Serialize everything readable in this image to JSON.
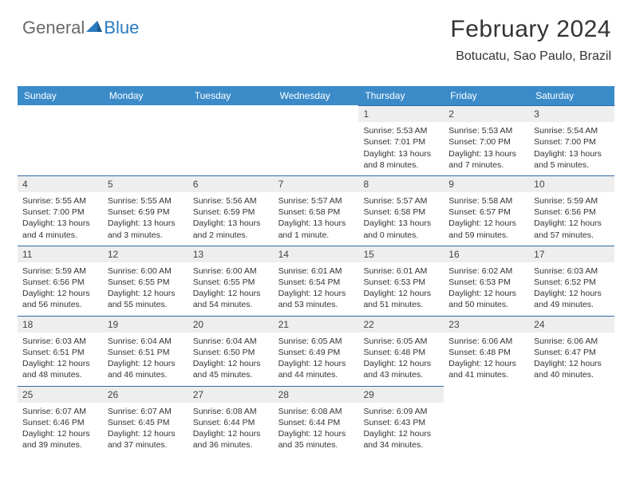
{
  "logo": {
    "part1": "General",
    "part2": "Blue"
  },
  "header": {
    "title": "February 2024",
    "location": "Botucatu, Sao Paulo, Brazil"
  },
  "colors": {
    "header_bar": "#3b8bc9",
    "date_bg": "#eeeeee",
    "border": "#2f6aa0"
  },
  "daynames": [
    "Sunday",
    "Monday",
    "Tuesday",
    "Wednesday",
    "Thursday",
    "Friday",
    "Saturday"
  ],
  "weeks": [
    [
      {
        "date": "",
        "sunrise": "",
        "sunset": "",
        "daylight": ""
      },
      {
        "date": "",
        "sunrise": "",
        "sunset": "",
        "daylight": ""
      },
      {
        "date": "",
        "sunrise": "",
        "sunset": "",
        "daylight": ""
      },
      {
        "date": "",
        "sunrise": "",
        "sunset": "",
        "daylight": ""
      },
      {
        "date": "1",
        "sunrise": "Sunrise: 5:53 AM",
        "sunset": "Sunset: 7:01 PM",
        "daylight": "Daylight: 13 hours and 8 minutes."
      },
      {
        "date": "2",
        "sunrise": "Sunrise: 5:53 AM",
        "sunset": "Sunset: 7:00 PM",
        "daylight": "Daylight: 13 hours and 7 minutes."
      },
      {
        "date": "3",
        "sunrise": "Sunrise: 5:54 AM",
        "sunset": "Sunset: 7:00 PM",
        "daylight": "Daylight: 13 hours and 5 minutes."
      }
    ],
    [
      {
        "date": "4",
        "sunrise": "Sunrise: 5:55 AM",
        "sunset": "Sunset: 7:00 PM",
        "daylight": "Daylight: 13 hours and 4 minutes."
      },
      {
        "date": "5",
        "sunrise": "Sunrise: 5:55 AM",
        "sunset": "Sunset: 6:59 PM",
        "daylight": "Daylight: 13 hours and 3 minutes."
      },
      {
        "date": "6",
        "sunrise": "Sunrise: 5:56 AM",
        "sunset": "Sunset: 6:59 PM",
        "daylight": "Daylight: 13 hours and 2 minutes."
      },
      {
        "date": "7",
        "sunrise": "Sunrise: 5:57 AM",
        "sunset": "Sunset: 6:58 PM",
        "daylight": "Daylight: 13 hours and 1 minute."
      },
      {
        "date": "8",
        "sunrise": "Sunrise: 5:57 AM",
        "sunset": "Sunset: 6:58 PM",
        "daylight": "Daylight: 13 hours and 0 minutes."
      },
      {
        "date": "9",
        "sunrise": "Sunrise: 5:58 AM",
        "sunset": "Sunset: 6:57 PM",
        "daylight": "Daylight: 12 hours and 59 minutes."
      },
      {
        "date": "10",
        "sunrise": "Sunrise: 5:59 AM",
        "sunset": "Sunset: 6:56 PM",
        "daylight": "Daylight: 12 hours and 57 minutes."
      }
    ],
    [
      {
        "date": "11",
        "sunrise": "Sunrise: 5:59 AM",
        "sunset": "Sunset: 6:56 PM",
        "daylight": "Daylight: 12 hours and 56 minutes."
      },
      {
        "date": "12",
        "sunrise": "Sunrise: 6:00 AM",
        "sunset": "Sunset: 6:55 PM",
        "daylight": "Daylight: 12 hours and 55 minutes."
      },
      {
        "date": "13",
        "sunrise": "Sunrise: 6:00 AM",
        "sunset": "Sunset: 6:55 PM",
        "daylight": "Daylight: 12 hours and 54 minutes."
      },
      {
        "date": "14",
        "sunrise": "Sunrise: 6:01 AM",
        "sunset": "Sunset: 6:54 PM",
        "daylight": "Daylight: 12 hours and 53 minutes."
      },
      {
        "date": "15",
        "sunrise": "Sunrise: 6:01 AM",
        "sunset": "Sunset: 6:53 PM",
        "daylight": "Daylight: 12 hours and 51 minutes."
      },
      {
        "date": "16",
        "sunrise": "Sunrise: 6:02 AM",
        "sunset": "Sunset: 6:53 PM",
        "daylight": "Daylight: 12 hours and 50 minutes."
      },
      {
        "date": "17",
        "sunrise": "Sunrise: 6:03 AM",
        "sunset": "Sunset: 6:52 PM",
        "daylight": "Daylight: 12 hours and 49 minutes."
      }
    ],
    [
      {
        "date": "18",
        "sunrise": "Sunrise: 6:03 AM",
        "sunset": "Sunset: 6:51 PM",
        "daylight": "Daylight: 12 hours and 48 minutes."
      },
      {
        "date": "19",
        "sunrise": "Sunrise: 6:04 AM",
        "sunset": "Sunset: 6:51 PM",
        "daylight": "Daylight: 12 hours and 46 minutes."
      },
      {
        "date": "20",
        "sunrise": "Sunrise: 6:04 AM",
        "sunset": "Sunset: 6:50 PM",
        "daylight": "Daylight: 12 hours and 45 minutes."
      },
      {
        "date": "21",
        "sunrise": "Sunrise: 6:05 AM",
        "sunset": "Sunset: 6:49 PM",
        "daylight": "Daylight: 12 hours and 44 minutes."
      },
      {
        "date": "22",
        "sunrise": "Sunrise: 6:05 AM",
        "sunset": "Sunset: 6:48 PM",
        "daylight": "Daylight: 12 hours and 43 minutes."
      },
      {
        "date": "23",
        "sunrise": "Sunrise: 6:06 AM",
        "sunset": "Sunset: 6:48 PM",
        "daylight": "Daylight: 12 hours and 41 minutes."
      },
      {
        "date": "24",
        "sunrise": "Sunrise: 6:06 AM",
        "sunset": "Sunset: 6:47 PM",
        "daylight": "Daylight: 12 hours and 40 minutes."
      }
    ],
    [
      {
        "date": "25",
        "sunrise": "Sunrise: 6:07 AM",
        "sunset": "Sunset: 6:46 PM",
        "daylight": "Daylight: 12 hours and 39 minutes."
      },
      {
        "date": "26",
        "sunrise": "Sunrise: 6:07 AM",
        "sunset": "Sunset: 6:45 PM",
        "daylight": "Daylight: 12 hours and 37 minutes."
      },
      {
        "date": "27",
        "sunrise": "Sunrise: 6:08 AM",
        "sunset": "Sunset: 6:44 PM",
        "daylight": "Daylight: 12 hours and 36 minutes."
      },
      {
        "date": "28",
        "sunrise": "Sunrise: 6:08 AM",
        "sunset": "Sunset: 6:44 PM",
        "daylight": "Daylight: 12 hours and 35 minutes."
      },
      {
        "date": "29",
        "sunrise": "Sunrise: 6:09 AM",
        "sunset": "Sunset: 6:43 PM",
        "daylight": "Daylight: 12 hours and 34 minutes."
      },
      {
        "date": "",
        "sunrise": "",
        "sunset": "",
        "daylight": ""
      },
      {
        "date": "",
        "sunrise": "",
        "sunset": "",
        "daylight": ""
      }
    ]
  ]
}
